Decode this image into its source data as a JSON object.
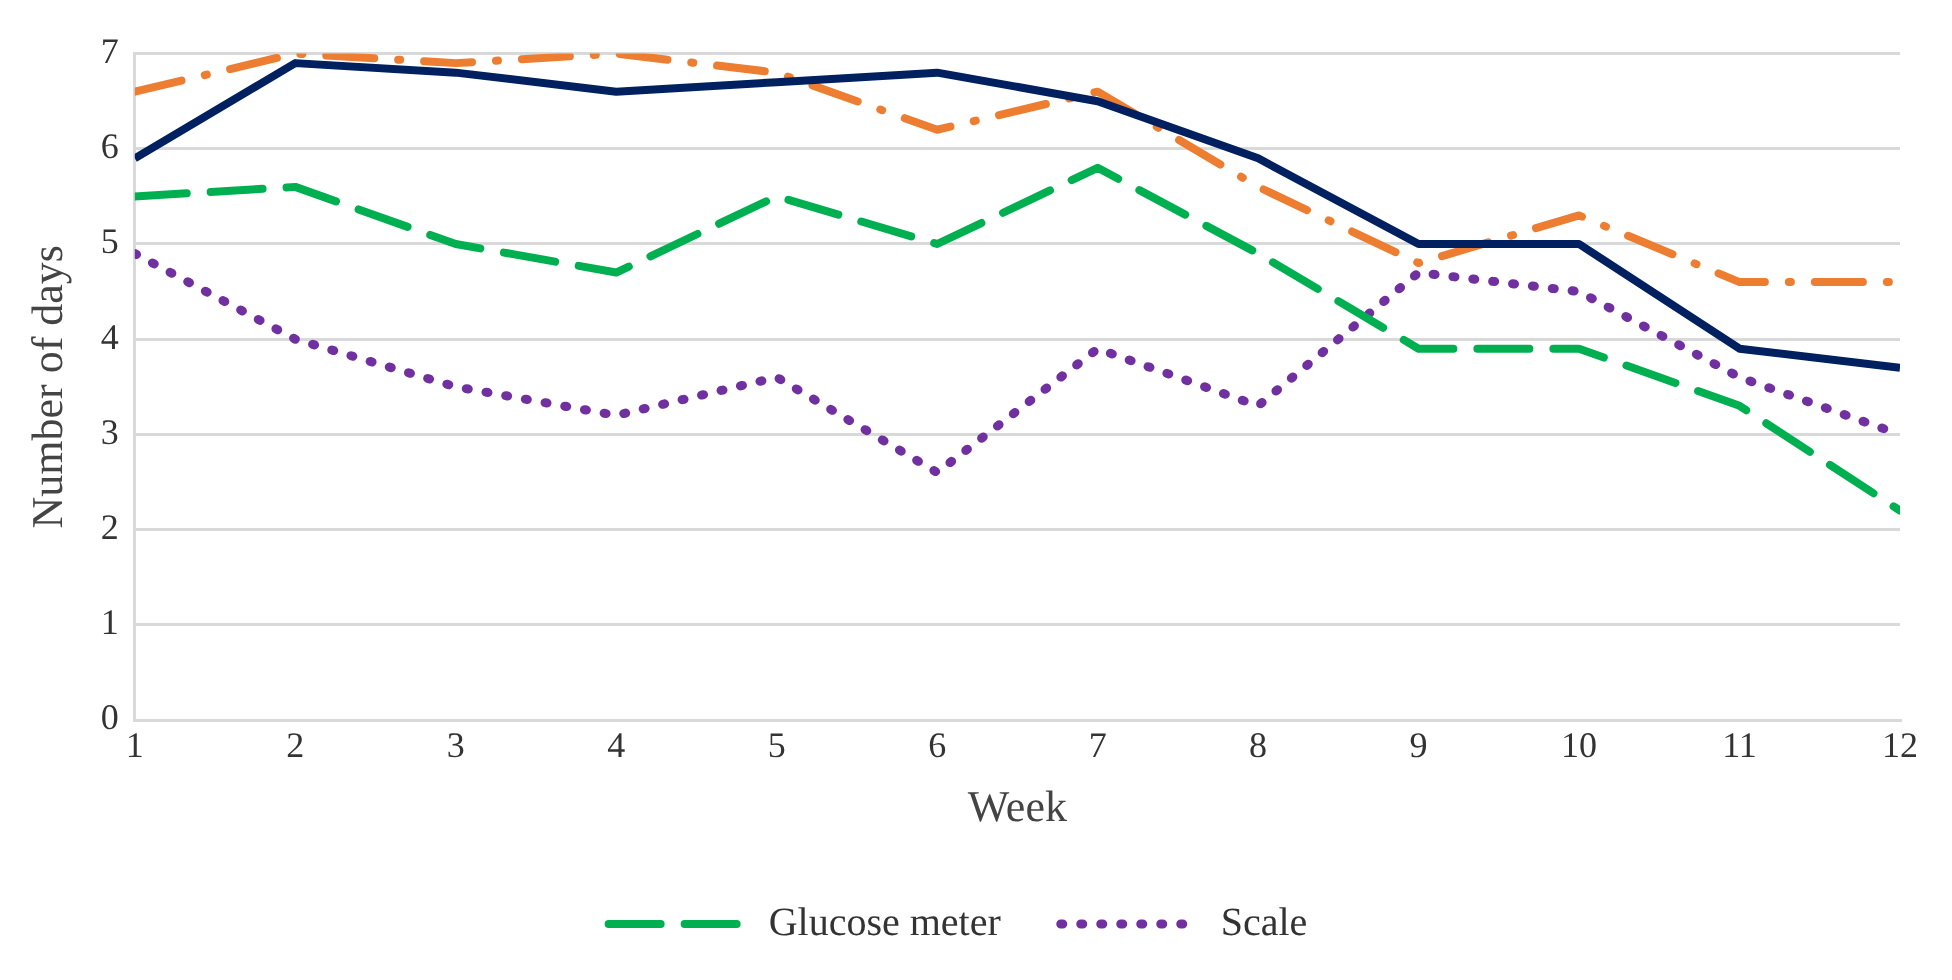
{
  "chart_data": {
    "type": "line",
    "xlabel": "Week",
    "ylabel": "Number of days",
    "x": [
      1,
      2,
      3,
      4,
      5,
      6,
      7,
      8,
      9,
      10,
      11,
      12
    ],
    "xlim": [
      1,
      12
    ],
    "xticks": [
      1,
      2,
      3,
      4,
      5,
      6,
      7,
      8,
      9,
      10,
      11,
      12
    ],
    "ylim": [
      0,
      7
    ],
    "yticks": [
      0,
      1,
      2,
      3,
      4,
      5,
      6,
      7
    ],
    "grid": "y",
    "legend": "bottom",
    "marker": "none",
    "series": [
      {
        "color": "#002060",
        "line_style": "solid",
        "values": [
          5.9,
          6.9,
          6.8,
          6.6,
          6.7,
          6.8,
          6.5,
          5.9,
          5.0,
          5.0,
          3.9,
          3.7
        ]
      },
      {
        "color": "#ed7d31",
        "line_style": "dashdot",
        "values": [
          6.6,
          7.0,
          6.9,
          7.0,
          6.8,
          6.2,
          6.6,
          5.6,
          4.8,
          5.3,
          4.6,
          4.6
        ]
      },
      {
        "name": "Glucose meter",
        "color": "#00b050",
        "line_style": "dashed",
        "values": [
          5.5,
          5.6,
          5.0,
          4.7,
          5.5,
          5.0,
          5.8,
          4.9,
          3.9,
          3.9,
          3.3,
          2.2
        ]
      },
      {
        "name": "Scale",
        "color": "#7030a0",
        "line_style": "dotted",
        "values": [
          4.9,
          4.0,
          3.5,
          3.2,
          3.6,
          2.6,
          3.9,
          3.3,
          4.7,
          4.5,
          3.6,
          3.0
        ]
      }
    ]
  }
}
